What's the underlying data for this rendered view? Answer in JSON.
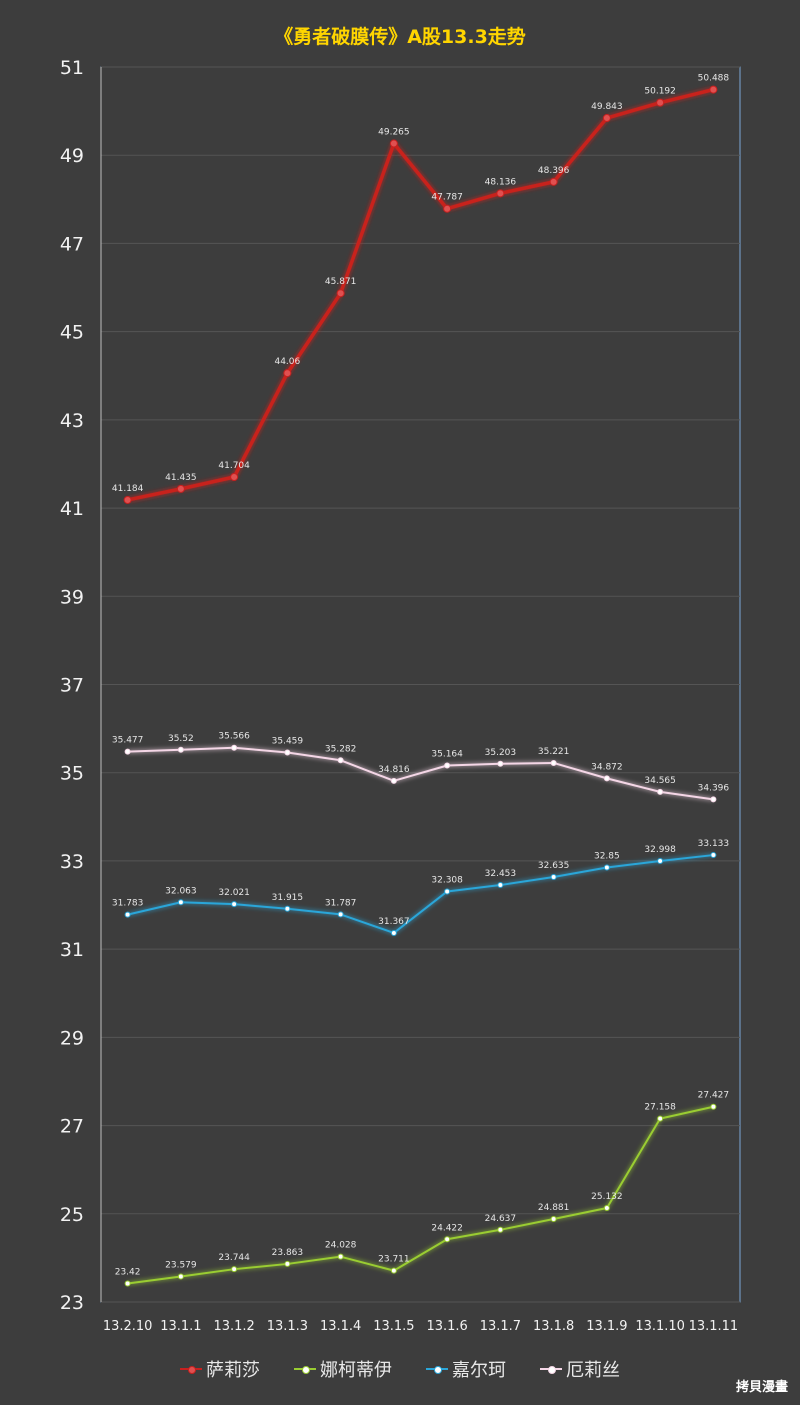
{
  "title": "《勇者破膜传》A股13.3走势",
  "watermark": "拷貝漫畫",
  "chart_data": {
    "type": "line",
    "categories": [
      "13.2.10",
      "13.1.1",
      "13.1.2",
      "13.1.3",
      "13.1.4",
      "13.1.5",
      "13.1.6",
      "13.1.7",
      "13.1.8",
      "13.1.9",
      "13.1.10",
      "13.1.11"
    ],
    "ylim": [
      23,
      51
    ],
    "yticks": [
      23,
      25,
      27,
      29,
      31,
      33,
      35,
      37,
      39,
      41,
      43,
      45,
      47,
      49,
      51
    ],
    "grid": true,
    "legend_position": "bottom",
    "series": [
      {
        "name": "萨莉莎",
        "color": "#c8201f",
        "values": [
          41.184,
          41.435,
          41.704,
          44.06,
          45.871,
          49.265,
          47.787,
          48.136,
          48.396,
          49.843,
          50.192,
          50.488
        ],
        "labels": [
          "41.184",
          "41.435",
          "41.704",
          "44.06",
          "45.871",
          "49.265",
          "47.787",
          "48.136",
          "48.396",
          "49.843",
          "50.192",
          "50.488"
        ]
      },
      {
        "name": "娜柯蒂伊",
        "color": "#9acd32",
        "values": [
          23.42,
          23.579,
          23.744,
          23.863,
          24.028,
          23.711,
          24.422,
          24.637,
          24.881,
          25.132,
          27.158,
          27.427
        ],
        "labels": [
          "23.42",
          "23.579",
          "23.744",
          "23.863",
          "24.028",
          "23.711",
          "24.422",
          "24.637",
          "24.881",
          "25.132",
          "27.158",
          "27.427"
        ]
      },
      {
        "name": "嘉尔珂",
        "color": "#2aa6d9",
        "values": [
          31.783,
          32.063,
          32.021,
          31.915,
          31.787,
          31.367,
          32.308,
          32.453,
          32.635,
          32.85,
          32.998,
          33.133
        ],
        "labels": [
          "31.783",
          "32.063",
          "32.021",
          "31.915",
          "31.787",
          "31.367",
          "32.308",
          "32.453",
          "32.635",
          "32.85",
          "32.998",
          "33.133"
        ]
      },
      {
        "name": "厄莉丝",
        "color": "#f4d6e6",
        "values": [
          35.477,
          35.52,
          35.566,
          35.459,
          35.282,
          34.816,
          35.164,
          35.203,
          35.221,
          34.872,
          34.565,
          34.396
        ],
        "labels": [
          "35.477",
          "35.52",
          "35.566",
          "35.459",
          "35.282",
          "34.816",
          "35.164",
          "35.203",
          "35.221",
          "34.872",
          "34.565",
          "34.396"
        ]
      }
    ]
  }
}
